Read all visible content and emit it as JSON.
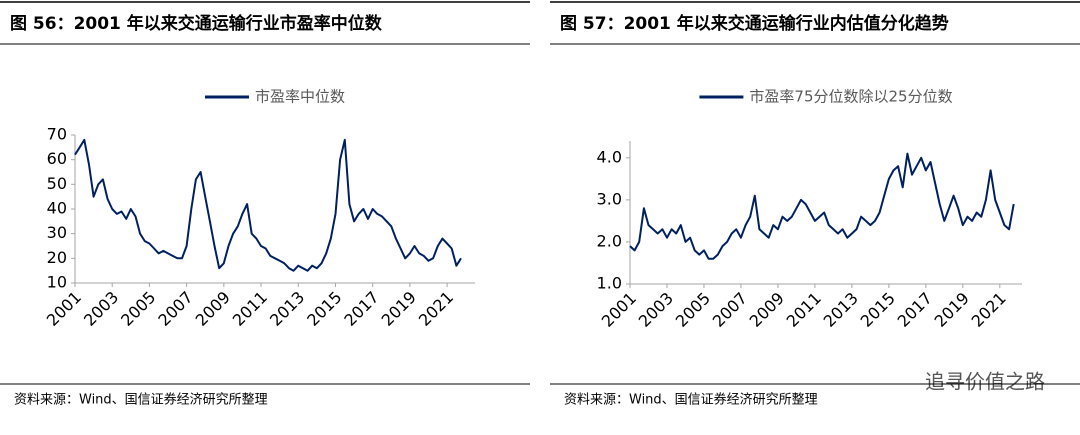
{
  "chart_data": [
    {
      "type": "line",
      "title": "图 56：2001 年以来交通运输行业市盈率中位数",
      "source": "资料来源：Wind、国信证券经济研究所整理",
      "x": [
        2001,
        2001.25,
        2001.5,
        2001.75,
        2002,
        2002.25,
        2002.5,
        2002.75,
        2003,
        2003.25,
        2003.5,
        2003.75,
        2004,
        2004.25,
        2004.5,
        2004.75,
        2005,
        2005.25,
        2005.5,
        2005.75,
        2006,
        2006.25,
        2006.5,
        2006.75,
        2007,
        2007.25,
        2007.5,
        2007.75,
        2008,
        2008.25,
        2008.5,
        2008.75,
        2009,
        2009.25,
        2009.5,
        2009.75,
        2010,
        2010.25,
        2010.5,
        2010.75,
        2011,
        2011.25,
        2011.5,
        2011.75,
        2012,
        2012.25,
        2012.5,
        2012.75,
        2013,
        2013.25,
        2013.5,
        2013.75,
        2014,
        2014.25,
        2014.5,
        2014.75,
        2015,
        2015.25,
        2015.5,
        2015.75,
        2016,
        2016.25,
        2016.5,
        2016.75,
        2017,
        2017.25,
        2017.5,
        2017.75,
        2018,
        2018.25,
        2018.5,
        2018.75,
        2019,
        2019.25,
        2019.5,
        2019.75,
        2020,
        2020.25,
        2020.5,
        2020.75,
        2021,
        2021.25,
        2021.5,
        2021.75
      ],
      "series": [
        {
          "name": "市盈率中位数",
          "color": "#002060",
          "values": [
            62,
            65,
            68,
            58,
            45,
            50,
            52,
            44,
            40,
            38,
            39,
            36,
            40,
            37,
            30,
            27,
            26,
            24,
            22,
            23,
            22,
            21,
            20,
            20,
            25,
            40,
            52,
            55,
            45,
            35,
            25,
            16,
            18,
            25,
            30,
            33,
            38,
            42,
            30,
            28,
            25,
            24,
            21,
            20,
            19,
            18,
            16,
            15,
            17,
            16,
            15,
            17,
            16,
            18,
            22,
            28,
            38,
            60,
            68,
            42,
            35,
            38,
            40,
            36,
            40,
            38,
            37,
            35,
            33,
            28,
            24,
            20,
            22,
            25,
            22,
            21,
            19,
            20,
            25,
            28,
            26,
            24,
            17,
            20
          ]
        }
      ],
      "xlim": [
        2001,
        2022.5
      ],
      "xticks": [
        2001,
        2003,
        2005,
        2007,
        2009,
        2011,
        2013,
        2015,
        2017,
        2019,
        2021
      ],
      "ylim": [
        10,
        70
      ],
      "yticks": [
        10,
        20,
        30,
        40,
        50,
        60,
        70
      ]
    },
    {
      "type": "line",
      "title": "图 57：2001 年以来交通运输行业内估值分化趋势",
      "source": "资料来源：Wind、国信证券经济研究所整理",
      "x": [
        2001,
        2001.25,
        2001.5,
        2001.75,
        2002,
        2002.25,
        2002.5,
        2002.75,
        2003,
        2003.25,
        2003.5,
        2003.75,
        2004,
        2004.25,
        2004.5,
        2004.75,
        2005,
        2005.25,
        2005.5,
        2005.75,
        2006,
        2006.25,
        2006.5,
        2006.75,
        2007,
        2007.25,
        2007.5,
        2007.75,
        2008,
        2008.25,
        2008.5,
        2008.75,
        2009,
        2009.25,
        2009.5,
        2009.75,
        2010,
        2010.25,
        2010.5,
        2010.75,
        2011,
        2011.25,
        2011.5,
        2011.75,
        2012,
        2012.25,
        2012.5,
        2012.75,
        2013,
        2013.25,
        2013.5,
        2013.75,
        2014,
        2014.25,
        2014.5,
        2014.75,
        2015,
        2015.25,
        2015.5,
        2015.75,
        2016,
        2016.25,
        2016.5,
        2016.75,
        2017,
        2017.25,
        2017.5,
        2017.75,
        2018,
        2018.25,
        2018.5,
        2018.75,
        2019,
        2019.25,
        2019.5,
        2019.75,
        2020,
        2020.25,
        2020.5,
        2020.75,
        2021,
        2021.25,
        2021.5,
        2021.75
      ],
      "series": [
        {
          "name": "市盈率75分位数除以25分位数",
          "color": "#002060",
          "values": [
            1.9,
            1.8,
            2.0,
            2.8,
            2.4,
            2.3,
            2.2,
            2.3,
            2.1,
            2.3,
            2.2,
            2.4,
            2.0,
            2.1,
            1.8,
            1.7,
            1.8,
            1.6,
            1.6,
            1.7,
            1.9,
            2.0,
            2.2,
            2.3,
            2.1,
            2.4,
            2.6,
            3.1,
            2.3,
            2.2,
            2.1,
            2.4,
            2.3,
            2.6,
            2.5,
            2.6,
            2.8,
            3.0,
            2.9,
            2.7,
            2.5,
            2.6,
            2.7,
            2.4,
            2.3,
            2.2,
            2.3,
            2.1,
            2.2,
            2.3,
            2.6,
            2.5,
            2.4,
            2.5,
            2.7,
            3.1,
            3.5,
            3.7,
            3.8,
            3.3,
            4.1,
            3.6,
            3.8,
            4.0,
            3.7,
            3.9,
            3.4,
            2.9,
            2.5,
            2.8,
            3.1,
            2.8,
            2.4,
            2.6,
            2.5,
            2.7,
            2.6,
            3.0,
            3.7,
            3.0,
            2.7,
            2.4,
            2.3,
            2.9
          ]
        }
      ],
      "xlim": [
        2001,
        2022.2
      ],
      "xticks": [
        2001,
        2003,
        2005,
        2007,
        2009,
        2011,
        2013,
        2015,
        2017,
        2019,
        2021
      ],
      "ylim": [
        1,
        4.4
      ],
      "yticks": [
        {
          "value": 1,
          "label": "1.0"
        },
        {
          "value": 2,
          "label": "2.0"
        },
        {
          "value": 3,
          "label": "3.0"
        },
        {
          "value": 4,
          "label": "4.0"
        }
      ]
    }
  ],
  "watermark": "追寻价值之路"
}
